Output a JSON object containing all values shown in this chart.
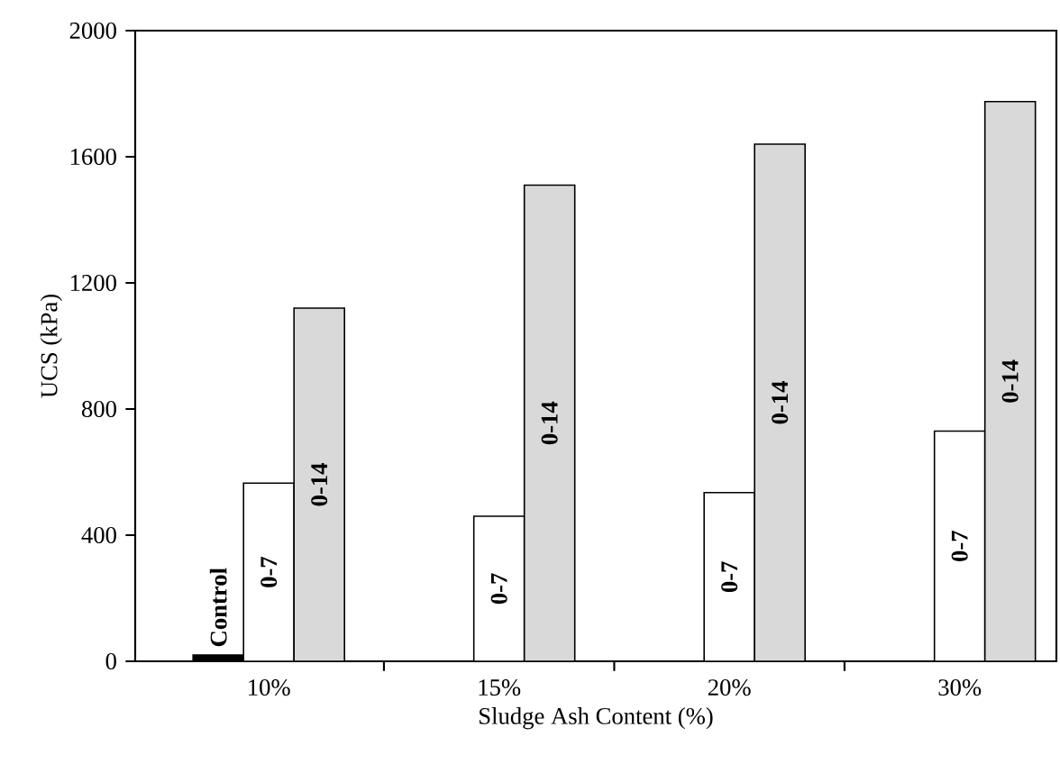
{
  "chart_data": {
    "type": "bar",
    "xlabel": "Sludge Ash Content (%)",
    "ylabel": "UCS (kPa)",
    "categories": [
      "10%",
      "15%",
      "20%",
      "30%"
    ],
    "series": [
      {
        "name": "Control",
        "color": "#000000",
        "values": [
          20,
          null,
          null,
          null
        ]
      },
      {
        "name": "0-7",
        "color": "#ffffff",
        "values": [
          565,
          460,
          535,
          730
        ]
      },
      {
        "name": "0-14",
        "color": "#d9d9d9",
        "values": [
          1120,
          1510,
          1640,
          1775
        ]
      }
    ],
    "ylim": [
      0,
      2000
    ],
    "yticks": [
      0,
      400,
      800,
      1200,
      1600,
      2000
    ],
    "grid": false,
    "legend": false
  }
}
